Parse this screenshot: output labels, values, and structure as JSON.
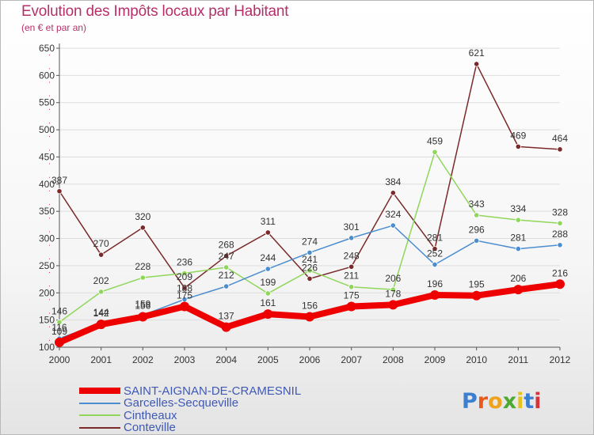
{
  "header": {
    "title": "Evolution des Impôts locaux par Habitant",
    "subtitle": "(en € et par an)"
  },
  "logo": {
    "text": "Proxiti"
  },
  "colors": {
    "title": "#b5306a",
    "legend_text": "#3f59b5",
    "axis": "#555555",
    "grid": "#dddddd"
  },
  "chart_data": {
    "type": "line",
    "title": "Evolution des Impôts locaux par Habitant",
    "subtitle": "(en € et par an)",
    "xlabel": "",
    "ylabel": "",
    "x": [
      "2000",
      "2001",
      "2002",
      "2003",
      "2004",
      "2005",
      "2006",
      "2007",
      "2008",
      "2009",
      "2010",
      "2011",
      "2012"
    ],
    "ylim": [
      100,
      650
    ],
    "yticks": [
      100,
      150,
      200,
      250,
      300,
      350,
      400,
      450,
      500,
      550,
      600,
      650
    ],
    "grid": true,
    "legend_position": "bottom-left",
    "series": [
      {
        "name": "SAINT-AIGNAN-DE-CRAMESNIL",
        "color": "#ee0000",
        "values": [
          109,
          142,
          156,
          175,
          137,
          161,
          156,
          175,
          178,
          196,
          195,
          206,
          216
        ]
      },
      {
        "name": "Garcelles-Secqueville",
        "color": "#4c8dd0",
        "values": [
          116,
          144,
          159,
          188,
          212,
          244,
          274,
          301,
          324,
          252,
          296,
          281,
          288
        ]
      },
      {
        "name": "Cintheaux",
        "color": "#8fd65a",
        "values": [
          146,
          202,
          228,
          236,
          247,
          199,
          241,
          211,
          206,
          459,
          343,
          334,
          328
        ]
      },
      {
        "name": "Conteville",
        "color": "#7a2a2a",
        "values": [
          387,
          270,
          320,
          209,
          268,
          311,
          226,
          248,
          384,
          281,
          621,
          469,
          464
        ]
      }
    ]
  }
}
